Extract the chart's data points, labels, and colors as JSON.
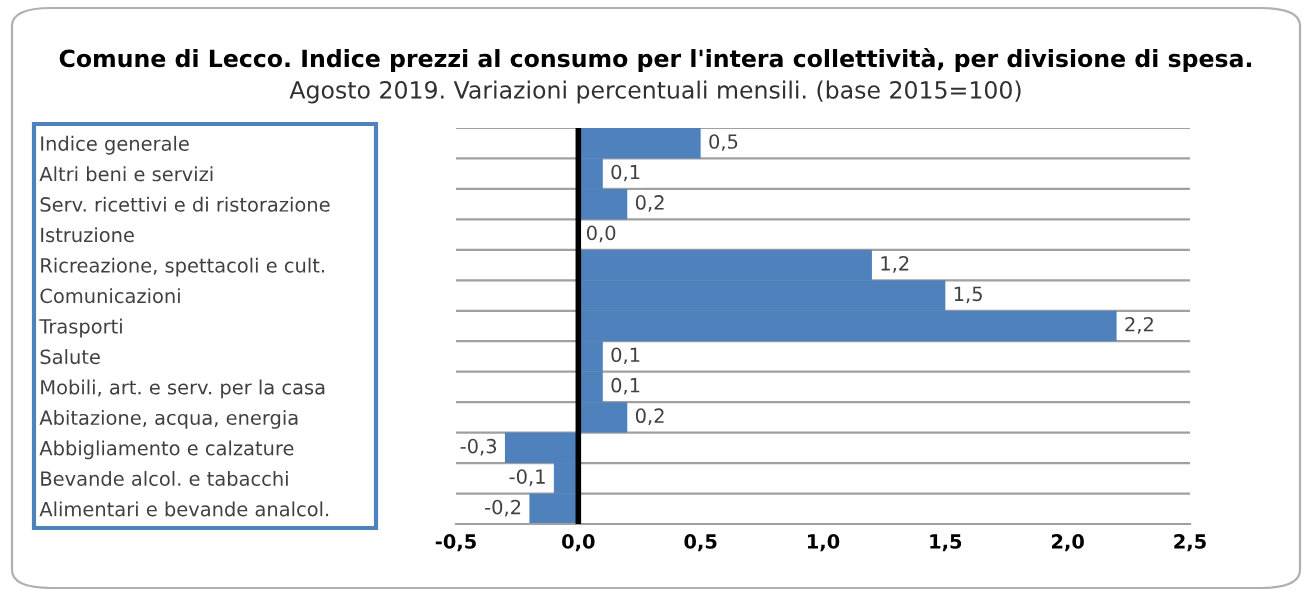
{
  "chart_data": {
    "type": "bar",
    "orientation": "horizontal",
    "title": "Comune di Lecco. Indice prezzi al consumo per l'intera collettività, per divisione di spesa.",
    "subtitle": "Agosto 2019. Variazioni percentuali mensili. (base 2015=100)",
    "categories": [
      "Indice generale",
      "Altri beni e servizi",
      "Serv. ricettivi e di ristorazione",
      "Istruzione",
      "Ricreazione, spettacoli e cult.",
      "Comunicazioni",
      "Trasporti",
      "Salute",
      "Mobili, art. e serv. per la casa",
      "Abitazione, acqua, energia",
      "Abbigliamento e calzature",
      "Bevande alcol. e tabacchi",
      "Alimentari e bevande analcol."
    ],
    "values": [
      0.5,
      0.1,
      0.2,
      0.0,
      1.2,
      1.5,
      2.2,
      0.1,
      0.1,
      0.2,
      -0.3,
      -0.1,
      -0.2
    ],
    "value_labels": [
      "0,5",
      "0,1",
      "0,2",
      "0,0",
      "1,2",
      "1,5",
      "2,2",
      "0,1",
      "0,1",
      "0,2",
      "-0,3",
      "-0,1",
      "-0,2"
    ],
    "color": "#4f81bd",
    "xlim": [
      -0.5,
      2.5
    ],
    "xticks": [
      {
        "value": -0.5,
        "label": "-0,5"
      },
      {
        "value": 0,
        "label": "0,0"
      },
      {
        "value": 0.5,
        "label": "0,5"
      },
      {
        "value": 1,
        "label": "1,0"
      },
      {
        "value": 1.5,
        "label": "1,5"
      },
      {
        "value": 2,
        "label": "2,0"
      },
      {
        "value": 2.5,
        "label": "2,5"
      }
    ],
    "grid": "y"
  }
}
